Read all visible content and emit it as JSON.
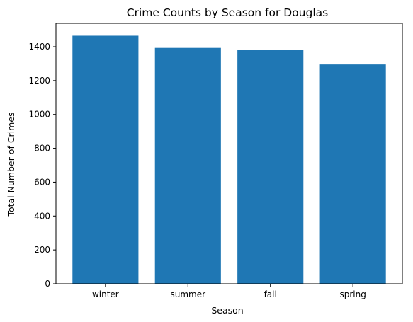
{
  "chart_data": {
    "type": "bar",
    "title": "Crime Counts by Season for Douglas",
    "xlabel": "Season",
    "ylabel": "Total Number of Crimes",
    "categories": [
      "winter",
      "summer",
      "fall",
      "spring"
    ],
    "values": [
      1465,
      1393,
      1380,
      1295
    ],
    "ylim": [
      0,
      1538
    ],
    "yticks": [
      0,
      200,
      400,
      600,
      800,
      1000,
      1200,
      1400
    ],
    "grid": false,
    "legend": "none",
    "bar_color": "#1f77b4"
  }
}
